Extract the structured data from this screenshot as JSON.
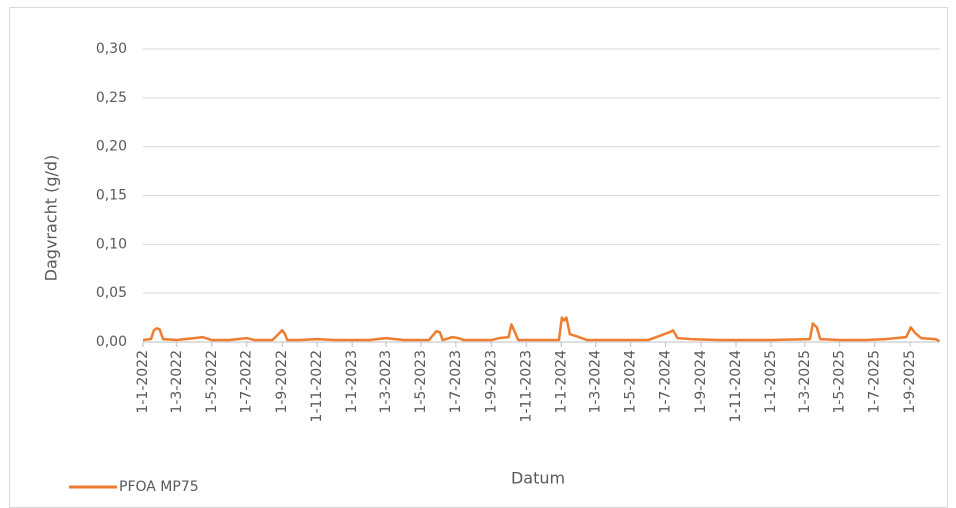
{
  "chart_data": {
    "type": "line",
    "y_label": "Dagvracht (g/d)",
    "x_label": "Datum",
    "xlim": [
      "1-1-2022",
      "23-10-2025"
    ],
    "xticks": [
      "1-1-2022",
      "1-3-2022",
      "1-5-2022",
      "1-7-2022",
      "1-9-2022",
      "1-11-2022",
      "1-1-2023",
      "1-3-2023",
      "1-5-2023",
      "1-7-2023",
      "1-9-2023",
      "1-11-2023",
      "1-1-2024",
      "1-3-2024",
      "1-5-2024",
      "1-7-2024",
      "1-9-2024",
      "1-11-2024",
      "1-1-2025",
      "1-3-2025",
      "1-5-2025",
      "1-7-2025",
      "1-9-2025"
    ],
    "ylim": [
      0,
      0.3
    ],
    "yticks": [
      {
        "value": 0,
        "label": "0,00"
      },
      {
        "value": 0.05,
        "label": "0,05"
      },
      {
        "value": 0.1,
        "label": "0,10"
      },
      {
        "value": 0.15,
        "label": "0,15"
      },
      {
        "value": 0.2,
        "label": "0,20"
      },
      {
        "value": 0.25,
        "label": "0,25"
      },
      {
        "value": 0.3,
        "label": "0,30"
      }
    ],
    "grid": true,
    "legend": "bottom-left",
    "x": [
      "1-1-2022",
      "15-1-2022",
      "20-1-2022",
      "25-1-2022",
      "30-1-2022",
      "5-2-2022",
      "1-3-2022",
      "1-4-2022",
      "15-4-2022",
      "1-5-2022",
      "1-6-2022",
      "1-7-2022",
      "15-7-2022",
      "15-8-2022",
      "1-9-2022",
      "5-9-2022",
      "10-9-2022",
      "1-10-2022",
      "1-11-2022",
      "1-12-2022",
      "1-1-2023",
      "1-2-2023",
      "1-3-2023",
      "1-4-2023",
      "15-5-2023",
      "28-5-2023",
      "3-6-2023",
      "8-6-2023",
      "25-6-2023",
      "5-7-2023",
      "15-7-2023",
      "1-9-2023",
      "15-9-2023",
      "1-10-2023",
      "6-10-2023",
      "12-10-2023",
      "18-10-2023",
      "1-12-2023",
      "28-12-2023",
      "2-1-2024",
      "6-1-2024",
      "10-1-2024",
      "16-1-2024",
      "1-2-2024",
      "15-2-2024",
      "1-4-2024",
      "1-6-2024",
      "8-7-2024",
      "14-7-2024",
      "22-7-2024",
      "15-8-2024",
      "1-10-2024",
      "1-1-2025",
      "10-3-2025",
      "15-3-2025",
      "22-3-2025",
      "28-3-2025",
      "1-5-2025",
      "15-6-2025",
      "20-7-2025",
      "25-8-2025",
      "2-9-2025",
      "10-9-2025",
      "20-9-2025",
      "15-10-2025",
      "22-10-2025"
    ],
    "series": [
      {
        "name": "PFOA MP75",
        "color": "#ed7d31",
        "values": [
          0.002,
          0.003,
          0.012,
          0.014,
          0.013,
          0.003,
          0.002,
          0.004,
          0.005,
          0.002,
          0.002,
          0.004,
          0.002,
          0.002,
          0.012,
          0.009,
          0.002,
          0.002,
          0.003,
          0.002,
          0.002,
          0.002,
          0.004,
          0.002,
          0.002,
          0.011,
          0.01,
          0.002,
          0.005,
          0.004,
          0.002,
          0.002,
          0.004,
          0.005,
          0.018,
          0.01,
          0.002,
          0.002,
          0.002,
          0.025,
          0.022,
          0.025,
          0.008,
          0.005,
          0.002,
          0.002,
          0.002,
          0.01,
          0.012,
          0.004,
          0.003,
          0.002,
          0.002,
          0.003,
          0.019,
          0.015,
          0.003,
          0.002,
          0.002,
          0.003,
          0.005,
          0.015,
          0.009,
          0.004,
          0.003,
          0.001
        ]
      }
    ]
  }
}
